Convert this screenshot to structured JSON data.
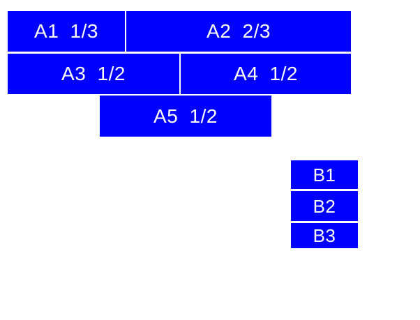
{
  "colors": {
    "tile_fill": "#0000ff",
    "tile_text": "#ffffff",
    "page_background": "#ffffff"
  },
  "boxes": {
    "a1": {
      "label": "A1 1/3"
    },
    "a2": {
      "label": "A2 2/3"
    },
    "a3": {
      "label": "A3 1/2"
    },
    "a4": {
      "label": "A4 1/2"
    },
    "a5": {
      "label": "A5 1/2"
    },
    "b1": {
      "label": "B1"
    },
    "b2": {
      "label": "B2"
    },
    "b3": {
      "label": "B3"
    }
  }
}
